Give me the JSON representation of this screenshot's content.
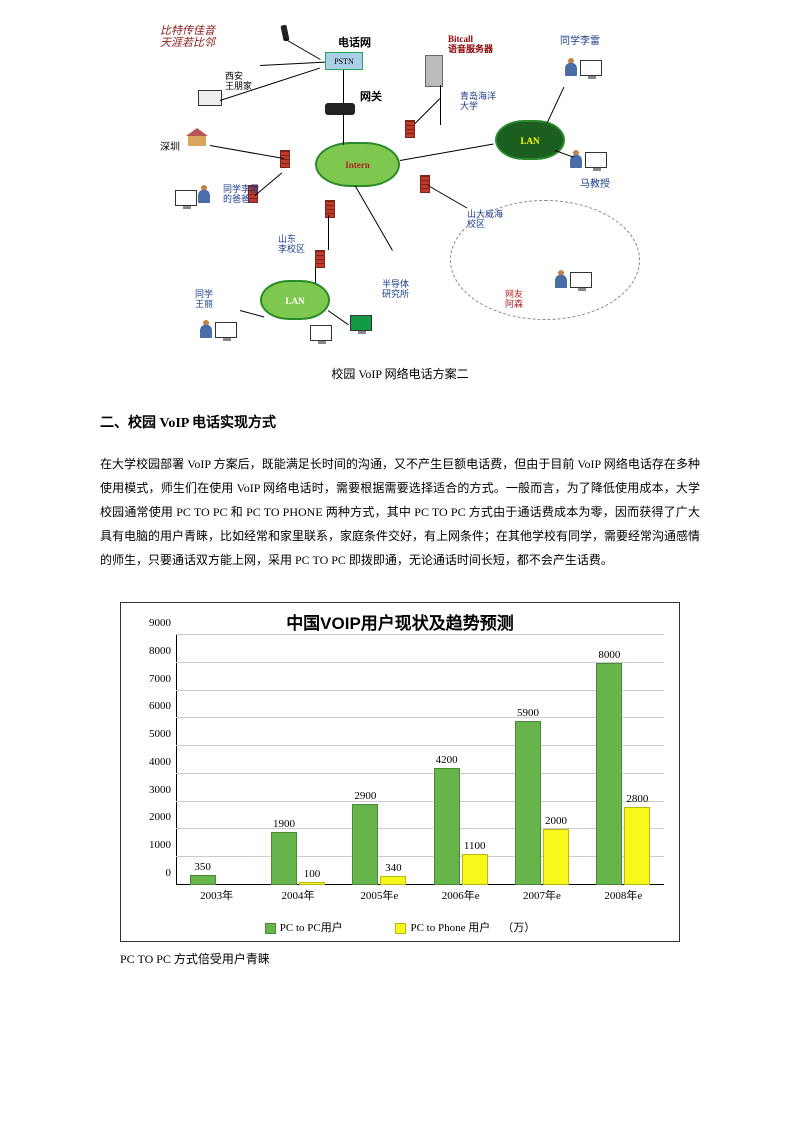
{
  "diagram": {
    "slogan_line1": "比特传佳音",
    "slogan_line2": "天涯若比邻",
    "nodes": {
      "phone_net": "电话网",
      "pstn": "PSTN",
      "gateway": "网关",
      "bitcall": "Bitcall\n语音服务器",
      "server_uni": "青岛海洋\n大学",
      "xian": "西安\n王朋家",
      "shenzhen": "深圳",
      "student_dad": "同学李雷\n的爸爸",
      "student_li": "同学李雷",
      "inter": "Intern",
      "ma_teacher": "马教授",
      "shandong": "山东\n李校区",
      "weihai": "山大威海\n校区",
      "student_wang": "同学\n王丽",
      "lan": "LAN",
      "lan2": "LAN",
      "friend_asen": "网友\n阿森",
      "semicond": "半导体\n研究所"
    },
    "caption": "校园 VoIP 网络电话方案二"
  },
  "section_heading": "二、校园 VoIP 电话实现方式",
  "paragraph": "在大学校园部署 VoIP 方案后，既能满足长时间的沟通，又不产生巨额电话费，但由于目前 VoIP 网络电话存在多种使用模式，师生们在使用 VoIP 网络电话时，需要根据需要选择适合的方式。一般而言，为了降低使用成本，大学校园通常使用 PC TO PC 和 PC TO PHONE 两种方式，其中 PC TO PC 方式由于通话费成本为零，因而获得了广大具有电脑的用户青睐，比如经常和家里联系，家庭条件交好，有上网条件；在其他学校有同学，需要经常沟通感情的师生，只要通话双方能上网，采用 PC TO PC 即拨即通，无论通话时间长短，都不会产生话费。",
  "chart": {
    "title": "中国VOIP用户现状及趋势预测",
    "y_max": 9000,
    "y_min": 0,
    "y_step": 1000,
    "categories": [
      "2003年",
      "2004年",
      "2005年e",
      "2006年e",
      "2007年e",
      "2008年e"
    ],
    "series": [
      {
        "name": "PC to PC用户",
        "color_class": "green",
        "values": [
          350,
          1900,
          2900,
          4200,
          5900,
          8000
        ]
      },
      {
        "name": "PC to Phone 用户",
        "color_class": "yellow",
        "values": [
          null,
          100,
          340,
          1100,
          2000,
          2800
        ]
      }
    ],
    "legend_unit": "（万）",
    "green_hex": "#66b44a",
    "yellow_hex": "#f7f71a",
    "grid_color": "#cccccc"
  },
  "chart_caption": "PC TO PC 方式倍受用户青睐"
}
